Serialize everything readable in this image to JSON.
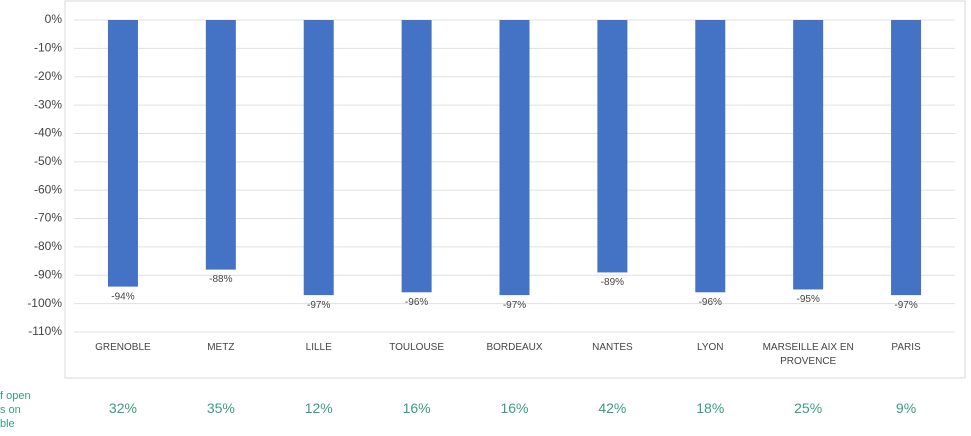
{
  "chart_data": {
    "type": "bar",
    "categories": [
      "GRENOBLE",
      "METZ",
      "LILLE",
      "TOULOUSE",
      "BORDEAUX",
      "NANTES",
      "LYON",
      "MARSEILLE AIX EN PROVENCE",
      "PARIS"
    ],
    "values": [
      -94,
      -88,
      -97,
      -96,
      -97,
      -89,
      -96,
      -95,
      -97
    ],
    "value_labels": [
      "-94%",
      "-88%",
      "-97%",
      "-96%",
      "-97%",
      "-89%",
      "-96%",
      "-95%",
      "-97%"
    ],
    "color": "#4472c4",
    "ylim": [
      -110,
      0
    ],
    "yticks": [
      {
        "value": 0,
        "label": "0%"
      },
      {
        "value": -10,
        "label": "-10%"
      },
      {
        "value": -20,
        "label": "-20%"
      },
      {
        "value": -30,
        "label": "-30%"
      },
      {
        "value": -40,
        "label": "-40%"
      },
      {
        "value": -50,
        "label": "-50%"
      },
      {
        "value": -60,
        "label": "-60%"
      },
      {
        "value": -70,
        "label": "-70%"
      },
      {
        "value": -80,
        "label": "-80%"
      },
      {
        "value": -90,
        "label": "-90%"
      },
      {
        "value": -100,
        "label": "-100%"
      },
      {
        "value": -110,
        "label": "-110%"
      }
    ],
    "grid": true
  },
  "footer_row": {
    "label_lines": [
      "f open",
      "s on",
      "ble"
    ],
    "cells": [
      "32%",
      "35%",
      "12%",
      "16%",
      "16%",
      "42%",
      "18%",
      "25%",
      "9%"
    ]
  }
}
